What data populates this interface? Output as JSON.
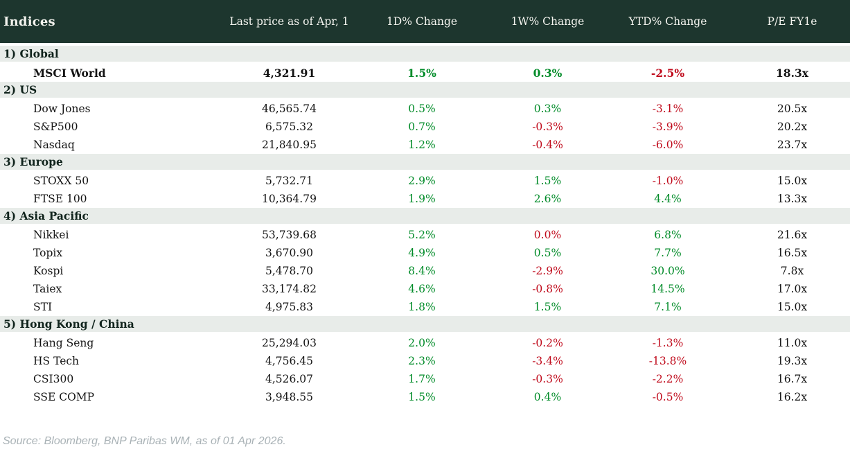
{
  "chart_data": {
    "type": "table",
    "title": "Indices",
    "columns": [
      "Last price as of Apr, 1",
      "1D% Change",
      "1W% Change",
      "YTD% Change",
      "P/E FY1e"
    ],
    "sections": [
      {
        "label": "1) Global",
        "rows": [
          {
            "name": "MSCI World",
            "bold": true,
            "price": "4,321.91",
            "d1": "1.5%",
            "w1": "0.3%",
            "ytd": "-2.5%",
            "pe": "18.3x"
          }
        ]
      },
      {
        "label": "2) US",
        "rows": [
          {
            "name": "Dow Jones",
            "price": "46,565.74",
            "d1": "0.5%",
            "w1": "0.3%",
            "ytd": "-3.1%",
            "pe": "20.5x"
          },
          {
            "name": "S&P500",
            "price": "6,575.32",
            "d1": "0.7%",
            "w1": "-0.3%",
            "ytd": "-3.9%",
            "pe": "20.2x"
          },
          {
            "name": "Nasdaq",
            "price": "21,840.95",
            "d1": "1.2%",
            "w1": "-0.4%",
            "ytd": "-6.0%",
            "pe": "23.7x"
          }
        ]
      },
      {
        "label": "3) Europe",
        "rows": [
          {
            "name": "STOXX 50",
            "price": "5,732.71",
            "d1": "2.9%",
            "w1": "1.5%",
            "ytd": "-1.0%",
            "pe": "15.0x"
          },
          {
            "name": "FTSE 100",
            "price": "10,364.79",
            "d1": "1.9%",
            "w1": "2.6%",
            "ytd": "4.4%",
            "pe": "13.3x"
          }
        ]
      },
      {
        "label": "4) Asia Pacific",
        "rows": [
          {
            "name": "Nikkei",
            "price": "53,739.68",
            "d1": "5.2%",
            "w1": "0.0%",
            "ytd": "6.8%",
            "pe": "21.6x"
          },
          {
            "name": "Topix",
            "price": "3,670.90",
            "d1": "4.9%",
            "w1": "0.5%",
            "ytd": "7.7%",
            "pe": "16.5x"
          },
          {
            "name": "Kospi",
            "price": "5,478.70",
            "d1": "8.4%",
            "w1": "-2.9%",
            "ytd": "30.0%",
            "pe": "7.8x"
          },
          {
            "name": "Taiex",
            "price": "33,174.82",
            "d1": "4.6%",
            "w1": "-0.8%",
            "ytd": "14.5%",
            "pe": "17.0x"
          },
          {
            "name": "STI",
            "price": "4,975.83",
            "d1": "1.8%",
            "w1": "1.5%",
            "ytd": "7.1%",
            "pe": "15.0x"
          }
        ]
      },
      {
        "label": "5) Hong Kong / China",
        "rows": [
          {
            "name": "Hang Seng",
            "price": "25,294.03",
            "d1": "2.0%",
            "w1": "-0.2%",
            "ytd": "-1.3%",
            "pe": "11.0x"
          },
          {
            "name": "HS Tech",
            "price": "4,756.45",
            "d1": "2.3%",
            "w1": "-3.4%",
            "ytd": "-13.8%",
            "pe": "19.3x"
          },
          {
            "name": "CSI300",
            "price": "4,526.07",
            "d1": "1.7%",
            "w1": "-0.3%",
            "ytd": "-2.2%",
            "pe": "16.7x"
          },
          {
            "name": "SSE COMP",
            "price": "3,948.55",
            "d1": "1.5%",
            "w1": "0.4%",
            "ytd": "-0.5%",
            "pe": "16.2x"
          }
        ]
      }
    ],
    "value_color_rule": "change > 0 green, change <= 0 red",
    "layout": {
      "header": "dark-green-bar",
      "section_rows": "light-grey-bands",
      "numeric_columns_align": "center"
    }
  },
  "footer": {
    "source": "Source: Bloomberg, BNP Paribas WM, as of 01 Apr 2026."
  },
  "colors": {
    "header_bg": "#1d362e",
    "header_text": "#f4f4ef",
    "section_row_bg": "#e8ece9",
    "positive_green": "#008b28",
    "negative_red": "#c00b1c",
    "footer_gray": "#a9b2b6"
  }
}
